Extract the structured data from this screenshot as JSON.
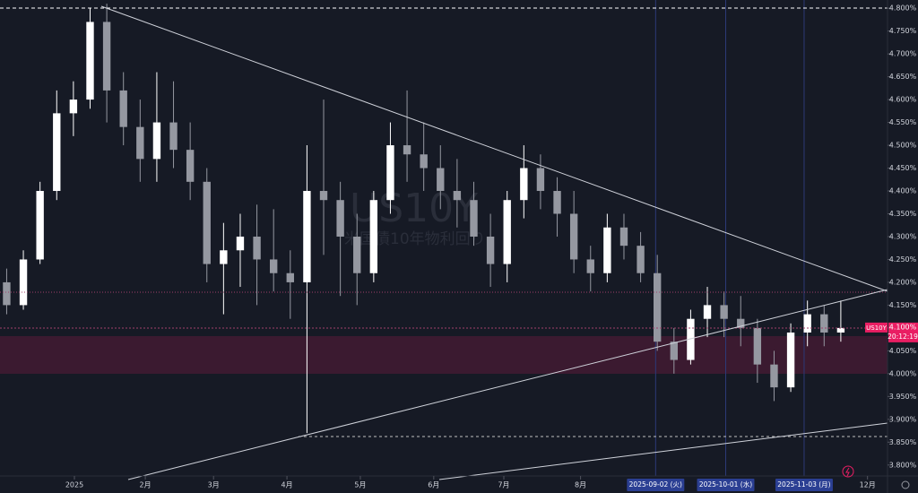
{
  "chart_data": {
    "type": "candlestick",
    "symbol": "US10Y",
    "subtitle": "米国債10年物利回り",
    "x": [
      0,
      1,
      2,
      3,
      4,
      5,
      6,
      7,
      8,
      9,
      10,
      11,
      12,
      13,
      14,
      15,
      16,
      17,
      18,
      19,
      20,
      21,
      22,
      23,
      24,
      25,
      26,
      27,
      28,
      29,
      30,
      31,
      32,
      33,
      34,
      35,
      36,
      37,
      38,
      39,
      40,
      41,
      42,
      43,
      44,
      45,
      46,
      47,
      48,
      49,
      50
    ],
    "open": [
      4.2,
      4.15,
      4.25,
      4.4,
      4.57,
      4.6,
      4.77,
      4.62,
      4.54,
      4.47,
      4.55,
      4.49,
      4.42,
      4.24,
      4.27,
      4.3,
      4.25,
      4.22,
      4.2,
      4.4,
      4.38,
      4.3,
      4.22,
      4.38,
      4.5,
      4.48,
      4.45,
      4.4,
      4.38,
      4.3,
      4.24,
      4.38,
      4.45,
      4.4,
      4.35,
      4.25,
      4.22,
      4.32,
      4.28,
      4.22,
      4.07,
      4.03,
      4.12,
      4.15,
      4.12,
      4.1,
      4.02,
      3.97,
      4.09,
      4.13,
      4.09
    ],
    "high": [
      4.23,
      4.27,
      4.42,
      4.62,
      4.64,
      4.8,
      4.81,
      4.66,
      4.6,
      4.66,
      4.64,
      4.55,
      4.45,
      4.33,
      4.35,
      4.37,
      4.36,
      4.27,
      4.5,
      4.6,
      4.42,
      4.35,
      4.4,
      4.55,
      4.62,
      4.55,
      4.5,
      4.47,
      4.42,
      4.35,
      4.4,
      4.5,
      4.48,
      4.43,
      4.4,
      4.28,
      4.35,
      4.35,
      4.31,
      4.26,
      4.1,
      4.14,
      4.19,
      4.18,
      4.17,
      4.12,
      4.05,
      4.11,
      4.16,
      4.15,
      4.16
    ],
    "low": [
      4.13,
      4.14,
      4.24,
      4.38,
      4.52,
      4.58,
      4.55,
      4.5,
      4.42,
      4.42,
      4.45,
      4.38,
      4.2,
      4.13,
      4.19,
      4.15,
      4.18,
      4.12,
      3.87,
      4.26,
      4.17,
      4.15,
      4.2,
      4.35,
      4.42,
      4.4,
      4.36,
      4.32,
      4.28,
      4.19,
      4.2,
      4.34,
      4.36,
      4.3,
      4.22,
      4.18,
      4.2,
      4.25,
      4.2,
      4.05,
      4.0,
      4.02,
      4.08,
      4.08,
      4.06,
      3.98,
      3.94,
      3.96,
      4.06,
      4.06,
      4.07
    ],
    "close": [
      4.15,
      4.25,
      4.4,
      4.57,
      4.6,
      4.77,
      4.62,
      4.54,
      4.47,
      4.55,
      4.49,
      4.42,
      4.24,
      4.27,
      4.3,
      4.25,
      4.22,
      4.2,
      4.4,
      4.38,
      4.3,
      4.22,
      4.38,
      4.5,
      4.48,
      4.45,
      4.4,
      4.38,
      4.3,
      4.24,
      4.38,
      4.45,
      4.4,
      4.35,
      4.25,
      4.22,
      4.32,
      4.28,
      4.22,
      4.07,
      4.03,
      4.12,
      4.15,
      4.12,
      4.1,
      4.02,
      3.97,
      4.09,
      4.13,
      4.09,
      4.1
    ],
    "up_color": "#ffffff",
    "down_color": "#9598a1",
    "last_value_label": "4.100%",
    "countdown": "20:12:19",
    "xlim": [
      -0.4,
      52.8
    ],
    "xticks": [
      {
        "value": 4.06,
        "label": "2025"
      },
      {
        "value": 8.31,
        "label": "2月"
      },
      {
        "value": 12.4,
        "label": "3月"
      },
      {
        "value": 16.8,
        "label": "4月"
      },
      {
        "value": 21.2,
        "label": "5月"
      },
      {
        "value": 25.6,
        "label": "6月"
      },
      {
        "value": 29.8,
        "label": "7月"
      },
      {
        "value": 34.4,
        "label": "8月"
      },
      {
        "value": 51.6,
        "label": "12月"
      }
    ],
    "xticks_highlighted": [
      {
        "value": 38.9,
        "label": "2025-09-02 (火)"
      },
      {
        "value": 43.1,
        "label": "2025-10-01 (水)"
      },
      {
        "value": 47.8,
        "label": "2025-11-03 (月)"
      }
    ],
    "ylim": [
      3.776,
      4.818
    ],
    "yticks": [
      {
        "value": 3.8,
        "label": "3.800%"
      },
      {
        "value": 3.85,
        "label": "3.850%"
      },
      {
        "value": 3.9,
        "label": "3.900%"
      },
      {
        "value": 3.95,
        "label": "3.950%"
      },
      {
        "value": 4.0,
        "label": "4.000%"
      },
      {
        "value": 4.05,
        "label": "4.050%"
      },
      {
        "value": 4.1,
        "label": "4.100%"
      },
      {
        "value": 4.15,
        "label": "4.150%"
      },
      {
        "value": 4.2,
        "label": "4.200%"
      },
      {
        "value": 4.25,
        "label": "4.250%"
      },
      {
        "value": 4.3,
        "label": "4.300%"
      },
      {
        "value": 4.35,
        "label": "4.350%"
      },
      {
        "value": 4.4,
        "label": "4.400%"
      },
      {
        "value": 4.45,
        "label": "4.450%"
      },
      {
        "value": 4.5,
        "label": "4.500%"
      },
      {
        "value": 4.55,
        "label": "4.550%"
      },
      {
        "value": 4.6,
        "label": "4.600%"
      },
      {
        "value": 4.65,
        "label": "4.650%"
      },
      {
        "value": 4.7,
        "label": "4.700%"
      },
      {
        "value": 4.75,
        "label": "4.750%"
      },
      {
        "value": 4.8,
        "label": "4.800%"
      }
    ]
  }
}
